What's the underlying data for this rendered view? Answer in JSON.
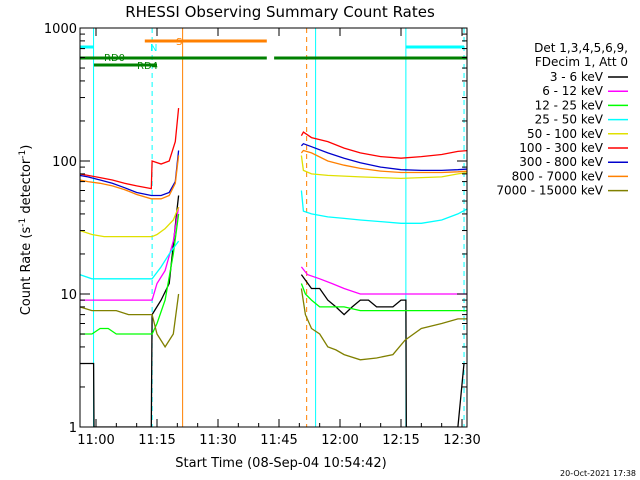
{
  "chart_data": {
    "type": "line",
    "title": "RHESSI Observing Summary Count Rates",
    "xlabel": "Start Time (08-Sep-04 10:54:42)",
    "ylabel_main": "Count Rate (s",
    "ylabel_sup1": "-1",
    "ylabel_mid": " detector",
    "ylabel_sup2": "-1",
    "ylabel_end": ")",
    "yscale": "log",
    "ylim": [
      1,
      1000
    ],
    "xlim_minutes": [
      10.9,
      38.2
    ],
    "x_ticks": [
      {
        "m": 15,
        "label": "11:00"
      },
      {
        "m": 30,
        "label": "11:15"
      },
      {
        "m": 45,
        "label": "11:30"
      },
      {
        "m": 60,
        "label": "11:45"
      },
      {
        "m": 75,
        "label": "12:00"
      },
      {
        "m": 90,
        "label": "12:15"
      },
      {
        "m": 105,
        "label": "12:30"
      }
    ],
    "y_ticks": [
      {
        "v": 1,
        "label": "1"
      },
      {
        "v": 10,
        "label": "10"
      },
      {
        "v": 100,
        "label": "100"
      },
      {
        "v": 1000,
        "label": "1000"
      }
    ],
    "legend_header": [
      "Det 1,3,4,5,6,9,",
      "FDecim 1, Att 0"
    ],
    "timestamp": "20-Oct-2021 17:38",
    "annotations": {
      "N": {
        "label": "N",
        "color": "#00ffff",
        "segments": [
          [
            -1,
            14.5
          ],
          [
            91.2,
            105.5
          ]
        ]
      },
      "S": {
        "label": "S",
        "color": "#ff8000",
        "segments": [
          [
            27.0,
            57.0
          ]
        ]
      },
      "RD0": {
        "label": "RD0",
        "color": "#008000",
        "segments": [
          [
            -1,
            57.0
          ],
          [
            58.8,
            107
          ]
        ]
      },
      "RD4": {
        "label": "RD4",
        "color": "#008000",
        "segments": [
          [
            14.5,
            30.0
          ]
        ]
      }
    },
    "vlines": [
      {
        "m": 14.4,
        "color": "#00ffff",
        "style": "solid"
      },
      {
        "m": 28.8,
        "color": "#00ffff",
        "style": "dashed"
      },
      {
        "m": 36.3,
        "color": "#ff8000",
        "style": "solid"
      },
      {
        "m": 66.8,
        "color": "#ff8000",
        "style": "dashed"
      },
      {
        "m": 69.0,
        "color": "#00ffff",
        "style": "solid"
      },
      {
        "m": 91.2,
        "color": "#00ffff",
        "style": "solid"
      },
      {
        "m": 105.5,
        "color": "#00ffff",
        "style": "dashed"
      }
    ],
    "gap": [
      35.3,
      65.5
    ],
    "series": [
      {
        "name": "3 - 6 keV",
        "color": "#000000",
        "points": [
          [
            11,
            3
          ],
          [
            14.4,
            3
          ],
          [
            14.5,
            1
          ],
          [
            28.6,
            1
          ],
          [
            28.8,
            7
          ],
          [
            31,
            9
          ],
          [
            33,
            12
          ],
          [
            35,
            45
          ],
          [
            35.3,
            55
          ],
          [
            65.5,
            14
          ],
          [
            68,
            11
          ],
          [
            70,
            11
          ],
          [
            72,
            9
          ],
          [
            74,
            8
          ],
          [
            76,
            7
          ],
          [
            78,
            8
          ],
          [
            80,
            9
          ],
          [
            82,
            9
          ],
          [
            84,
            8
          ],
          [
            86,
            8
          ],
          [
            88,
            8
          ],
          [
            90,
            9
          ],
          [
            91.2,
            9
          ],
          [
            91.3,
            1
          ],
          [
            104,
            1
          ],
          [
            105.5,
            3
          ]
        ]
      },
      {
        "name": "6 - 12 keV",
        "color": "#ff00ff",
        "points": [
          [
            11,
            9
          ],
          [
            14,
            9
          ],
          [
            16,
            9
          ],
          [
            18,
            9
          ],
          [
            20,
            9
          ],
          [
            22,
            9
          ],
          [
            24,
            9
          ],
          [
            26,
            9
          ],
          [
            28.6,
            9
          ],
          [
            28.8,
            9
          ],
          [
            30,
            12
          ],
          [
            32,
            15
          ],
          [
            34,
            25
          ],
          [
            35.3,
            45
          ],
          [
            65.5,
            16
          ],
          [
            67,
            14
          ],
          [
            70,
            13
          ],
          [
            73,
            12
          ],
          [
            76,
            11
          ],
          [
            80,
            10
          ],
          [
            85,
            10
          ],
          [
            90,
            10
          ],
          [
            95,
            10
          ],
          [
            100,
            10
          ],
          [
            105,
            10
          ],
          [
            106.5,
            10
          ]
        ]
      },
      {
        "name": "12 - 25 keV",
        "color": "#00ff00",
        "points": [
          [
            11,
            5
          ],
          [
            14,
            5
          ],
          [
            16,
            5.5
          ],
          [
            18,
            5.5
          ],
          [
            20,
            5
          ],
          [
            22,
            5
          ],
          [
            24,
            5
          ],
          [
            26,
            5
          ],
          [
            28.6,
            5
          ],
          [
            28.8,
            5
          ],
          [
            30,
            6
          ],
          [
            32,
            9
          ],
          [
            34,
            20
          ],
          [
            35.3,
            40
          ],
          [
            65.5,
            12
          ],
          [
            66.5,
            10
          ],
          [
            68,
            9
          ],
          [
            70,
            8
          ],
          [
            73,
            8
          ],
          [
            76,
            8
          ],
          [
            80,
            7.5
          ],
          [
            85,
            7.5
          ],
          [
            90,
            7.5
          ],
          [
            95,
            7.5
          ],
          [
            100,
            7.5
          ],
          [
            105,
            7.5
          ],
          [
            106.5,
            7.5
          ]
        ]
      },
      {
        "name": "25 - 50 keV",
        "color": "#00ffff",
        "points": [
          [
            11,
            14
          ],
          [
            14,
            13
          ],
          [
            17,
            13
          ],
          [
            20,
            13
          ],
          [
            23,
            13
          ],
          [
            26,
            13
          ],
          [
            28.6,
            13
          ],
          [
            28.8,
            13
          ],
          [
            31,
            16
          ],
          [
            33,
            20
          ],
          [
            35.3,
            25
          ],
          [
            65.5,
            60
          ],
          [
            66,
            42
          ],
          [
            68,
            40
          ],
          [
            72,
            38
          ],
          [
            76,
            37
          ],
          [
            80,
            36
          ],
          [
            85,
            35
          ],
          [
            90,
            34
          ],
          [
            95,
            34
          ],
          [
            100,
            36
          ],
          [
            104,
            40
          ],
          [
            106.5,
            44
          ]
        ]
      },
      {
        "name": "50 - 100 keV",
        "color": "#e0e000",
        "points": [
          [
            11,
            30
          ],
          [
            14,
            28
          ],
          [
            17,
            27
          ],
          [
            20,
            27
          ],
          [
            23,
            27
          ],
          [
            26,
            27
          ],
          [
            28.6,
            27
          ],
          [
            28.8,
            27
          ],
          [
            30,
            28
          ],
          [
            32,
            31
          ],
          [
            34,
            36
          ],
          [
            35.3,
            45
          ],
          [
            65.5,
            110
          ],
          [
            66,
            85
          ],
          [
            68,
            80
          ],
          [
            72,
            78
          ],
          [
            76,
            77
          ],
          [
            80,
            76
          ],
          [
            85,
            75
          ],
          [
            90,
            74
          ],
          [
            95,
            75
          ],
          [
            100,
            76
          ],
          [
            104,
            80
          ],
          [
            106.5,
            82
          ]
        ]
      },
      {
        "name": "100 - 300 keV",
        "color": "#ff0000",
        "points": [
          [
            11,
            80
          ],
          [
            13,
            78
          ],
          [
            16,
            75
          ],
          [
            19,
            72
          ],
          [
            22,
            68
          ],
          [
            25,
            65
          ],
          [
            28.6,
            62
          ],
          [
            28.8,
            100
          ],
          [
            31,
            95
          ],
          [
            33,
            100
          ],
          [
            34.5,
            140
          ],
          [
            35.3,
            250
          ],
          [
            65.5,
            155
          ],
          [
            66,
            165
          ],
          [
            68,
            150
          ],
          [
            72,
            140
          ],
          [
            76,
            125
          ],
          [
            80,
            115
          ],
          [
            85,
            108
          ],
          [
            90,
            105
          ],
          [
            95,
            108
          ],
          [
            100,
            112
          ],
          [
            104,
            118
          ],
          [
            106.5,
            120
          ]
        ]
      },
      {
        "name": "300 - 800 keV",
        "color": "#0000cc",
        "points": [
          [
            11,
            78
          ],
          [
            13,
            76
          ],
          [
            16,
            72
          ],
          [
            19,
            68
          ],
          [
            22,
            63
          ],
          [
            25,
            58
          ],
          [
            28.6,
            55
          ],
          [
            28.8,
            55
          ],
          [
            31,
            55
          ],
          [
            33,
            58
          ],
          [
            34.5,
            70
          ],
          [
            35.3,
            120
          ],
          [
            65.5,
            130
          ],
          [
            66,
            135
          ],
          [
            68,
            128
          ],
          [
            72,
            115
          ],
          [
            76,
            105
          ],
          [
            80,
            97
          ],
          [
            85,
            90
          ],
          [
            90,
            86
          ],
          [
            95,
            85
          ],
          [
            100,
            85
          ],
          [
            104,
            86
          ],
          [
            106.5,
            87
          ]
        ]
      },
      {
        "name": "800 - 7000 keV",
        "color": "#ff8000",
        "points": [
          [
            11,
            72
          ],
          [
            13,
            70
          ],
          [
            16,
            68
          ],
          [
            19,
            65
          ],
          [
            22,
            61
          ],
          [
            25,
            56
          ],
          [
            28.6,
            52
          ],
          [
            28.8,
            52
          ],
          [
            31,
            52
          ],
          [
            33,
            55
          ],
          [
            34.5,
            68
          ],
          [
            35.3,
            110
          ],
          [
            65.5,
            115
          ],
          [
            66,
            120
          ],
          [
            68,
            115
          ],
          [
            72,
            100
          ],
          [
            76,
            93
          ],
          [
            80,
            88
          ],
          [
            85,
            84
          ],
          [
            90,
            82
          ],
          [
            95,
            82
          ],
          [
            100,
            82
          ],
          [
            104,
            83
          ],
          [
            106.5,
            84
          ]
        ]
      },
      {
        "name": "7000 - 15000 keV",
        "color": "#808000",
        "points": [
          [
            11,
            8
          ],
          [
            14,
            7.5
          ],
          [
            17,
            7.5
          ],
          [
            20,
            7.5
          ],
          [
            23,
            7
          ],
          [
            26,
            7
          ],
          [
            28.6,
            7
          ],
          [
            28.8,
            7
          ],
          [
            30,
            5
          ],
          [
            32,
            4
          ],
          [
            34,
            5
          ],
          [
            35.3,
            10
          ],
          [
            65.5,
            11
          ],
          [
            66.5,
            7
          ],
          [
            68,
            5.5
          ],
          [
            70,
            5
          ],
          [
            72,
            4
          ],
          [
            74,
            3.8
          ],
          [
            76,
            3.5
          ],
          [
            80,
            3.2
          ],
          [
            84,
            3.3
          ],
          [
            88,
            3.5
          ],
          [
            91,
            4.5
          ],
          [
            95,
            5.5
          ],
          [
            100,
            6
          ],
          [
            104,
            6.5
          ],
          [
            106.5,
            6.5
          ]
        ]
      }
    ]
  }
}
